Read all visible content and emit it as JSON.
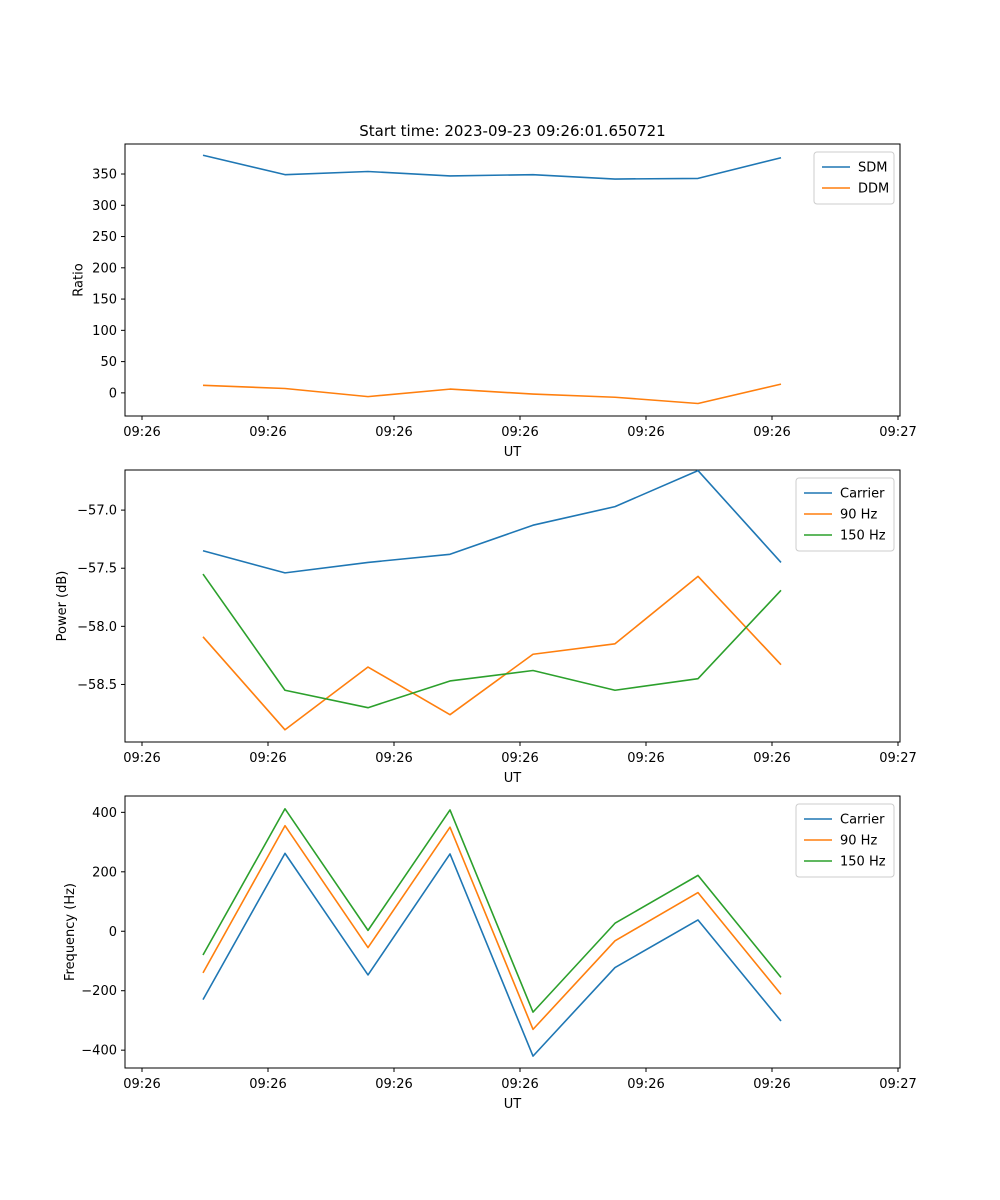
{
  "figure_title": "Start time: 2023-09-23 09:26:01.650721",
  "colors": {
    "blue": "#1f77b4",
    "orange": "#ff7f0e",
    "green": "#2ca02c"
  },
  "chart_data": [
    {
      "type": "line",
      "title": "Start time: 2023-09-23 09:26:01.650721",
      "xlabel": "UT",
      "ylabel": "Ratio",
      "x_tick_labels": [
        "09:26",
        "09:26",
        "09:26",
        "09:26",
        "09:26",
        "09:26",
        "09:27"
      ],
      "yticks": [
        0,
        50,
        100,
        150,
        200,
        250,
        300,
        350
      ],
      "ytick_labels": [
        "0",
        "50",
        "100",
        "150",
        "200",
        "250",
        "300",
        "350"
      ],
      "ylim": [
        -37,
        398
      ],
      "legend_loc": "upper right",
      "series": [
        {
          "name": "SDM",
          "color_key": "blue",
          "values": [
            380,
            349,
            354,
            347,
            349,
            342,
            343,
            376
          ]
        },
        {
          "name": "DDM",
          "color_key": "orange",
          "values": [
            12,
            7,
            -6,
            6,
            -2,
            -7,
            -17,
            14
          ]
        }
      ]
    },
    {
      "type": "line",
      "xlabel": "UT",
      "ylabel": "Power (dB)",
      "x_tick_labels": [
        "09:26",
        "09:26",
        "09:26",
        "09:26",
        "09:26",
        "09:26",
        "09:27"
      ],
      "yticks": [
        -58.5,
        -58.0,
        -57.5,
        -57.0
      ],
      "ytick_labels": [
        "−58.5",
        "−58.0",
        "−57.5",
        "−57.0"
      ],
      "ylim": [
        -58.995,
        -56.655
      ],
      "legend_loc": "upper right",
      "series": [
        {
          "name": "Carrier",
          "color_key": "blue",
          "values": [
            -57.35,
            -57.54,
            -57.45,
            -57.38,
            -57.13,
            -56.97,
            -56.66,
            -57.45
          ]
        },
        {
          "name": "90 Hz",
          "color_key": "orange",
          "values": [
            -58.09,
            -58.89,
            -58.35,
            -58.76,
            -58.24,
            -58.15,
            -57.57,
            -58.33
          ]
        },
        {
          "name": "150 Hz",
          "color_key": "green",
          "values": [
            -57.55,
            -58.55,
            -58.7,
            -58.47,
            -58.38,
            -58.55,
            -58.45,
            -57.69
          ]
        }
      ]
    },
    {
      "type": "line",
      "xlabel": "UT",
      "ylabel": "Frequency (Hz)",
      "x_tick_labels": [
        "09:26",
        "09:26",
        "09:26",
        "09:26",
        "09:26",
        "09:26",
        "09:27"
      ],
      "yticks": [
        -400,
        -200,
        0,
        200,
        400
      ],
      "ytick_labels": [
        "−400",
        "−200",
        "0",
        "200",
        "400"
      ],
      "ylim": [
        -460,
        455
      ],
      "legend_loc": "upper right",
      "series": [
        {
          "name": "Carrier",
          "color_key": "blue",
          "values": [
            -230,
            262,
            -147,
            260,
            -420,
            -122,
            38,
            -302
          ]
        },
        {
          "name": "90 Hz",
          "color_key": "orange",
          "values": [
            -140,
            355,
            -55,
            350,
            -330,
            -32,
            130,
            -212
          ]
        },
        {
          "name": "150 Hz",
          "color_key": "green",
          "values": [
            -80,
            412,
            3,
            408,
            -272,
            27,
            188,
            -155
          ]
        }
      ]
    }
  ]
}
